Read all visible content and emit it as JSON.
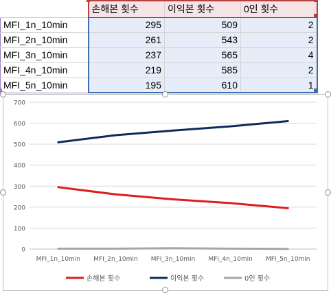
{
  "table": {
    "headers": [
      "손해본 횟수",
      "이익본 횟수",
      "0인 횟수"
    ],
    "rows": [
      {
        "label": "MFI_1n_10min",
        "loss": "295",
        "profit": "509",
        "zero": "2"
      },
      {
        "label": "MFI_2n_10min",
        "loss": "261",
        "profit": "543",
        "zero": "2"
      },
      {
        "label": "MFI_3n_10min",
        "loss": "237",
        "profit": "565",
        "zero": "4"
      },
      {
        "label": "MFI_4n_10min",
        "loss": "219",
        "profit": "585",
        "zero": "2"
      },
      {
        "label": "MFI_5n_10min",
        "loss": "195",
        "profit": "610",
        "zero": "1"
      }
    ]
  },
  "colors": {
    "header_fill": "#f6e3e6",
    "header_border": "#b5413f",
    "values_fill": "#e7edf8",
    "values_border": "#3b6fb2",
    "labels_border": "#9b7fbf"
  },
  "chart_data": {
    "type": "line",
    "categories": [
      "MFI_1n_10min",
      "MFI_2n_10min",
      "MFI_3n_10min",
      "MFI_4n_10min",
      "MFI_5n_10min"
    ],
    "series": [
      {
        "name": "손해본 횟수",
        "values": [
          295,
          261,
          237,
          219,
          195
        ],
        "color": "#e01b1b"
      },
      {
        "name": "이익본 횟수",
        "values": [
          509,
          543,
          565,
          585,
          610
        ],
        "color": "#0e2a5c"
      },
      {
        "name": "0인 횟수",
        "values": [
          2,
          2,
          4,
          2,
          1
        ],
        "color": "#a6a6a6"
      }
    ],
    "ylim": [
      0,
      700
    ],
    "yticks": [
      "0",
      "100",
      "200",
      "300",
      "400",
      "500",
      "600",
      "700"
    ],
    "grid": true,
    "legend": "bottom"
  }
}
